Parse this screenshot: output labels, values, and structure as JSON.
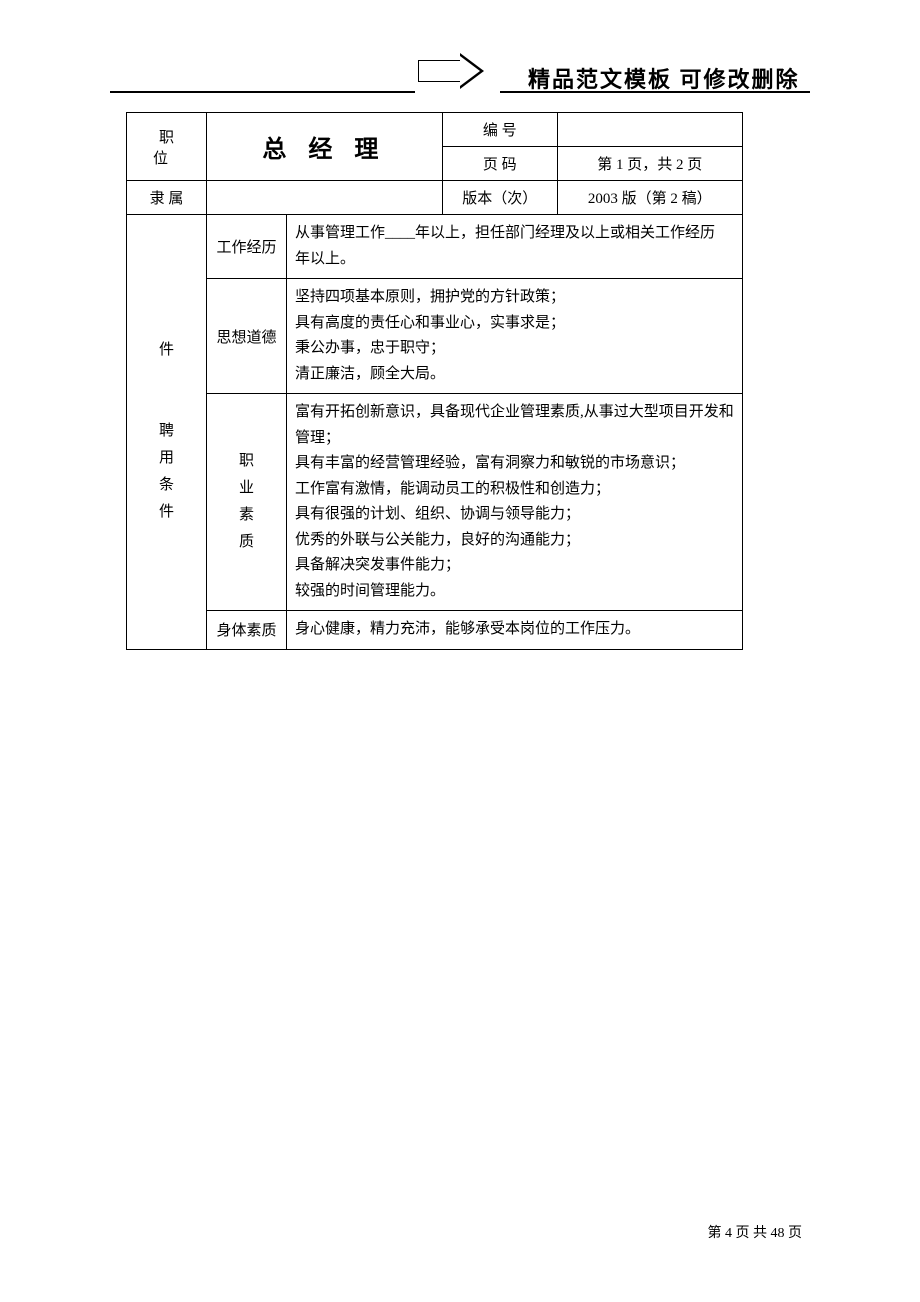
{
  "header": {
    "title": "精品范文模板 可修改删除"
  },
  "table": {
    "position_label": "职 位",
    "position_value": "总 经 理",
    "number_label": "编    号",
    "number_value": "",
    "page_label": "页    码",
    "page_value": "第 1 页，共 2 页",
    "affiliation_label": "隶  属",
    "affiliation_value": "",
    "version_label": "版本（次）",
    "version_value": "2003 版（第 2 稿）",
    "section_label_char1": "件",
    "section_label_full": "聘\n用\n条\n件",
    "rows": {
      "work_exp": {
        "label": "工作经历",
        "content": "从事管理工作____年以上，担任部门经理及以上或相关工作经历\n年以上。"
      },
      "moral": {
        "label": "思想道德",
        "content": "坚持四项基本原则，拥护党的方针政策；\n具有高度的责任心和事业心，实事求是；\n秉公办事，忠于职守；\n清正廉洁，顾全大局。"
      },
      "professional": {
        "label": "职\n业\n素\n质",
        "content": "富有开拓创新意识，具备现代企业管理素质,从事过大型项目开发和\n管理；\n具有丰富的经营管理经验，富有洞察力和敏锐的市场意识；\n工作富有激情，能调动员工的积极性和创造力；\n具有很强的计划、组织、协调与领导能力；\n优秀的外联与公关能力，良好的沟通能力；\n具备解决突发事件能力；\n较强的时间管理能力。"
      },
      "physical": {
        "label": "身体素质",
        "content": "身心健康，精力充沛，能够承受本岗位的工作压力。"
      }
    }
  },
  "footer": {
    "page_info": "第 4 页 共 48 页"
  },
  "colors": {
    "text": "#000000",
    "background": "#ffffff",
    "border": "#000000"
  }
}
